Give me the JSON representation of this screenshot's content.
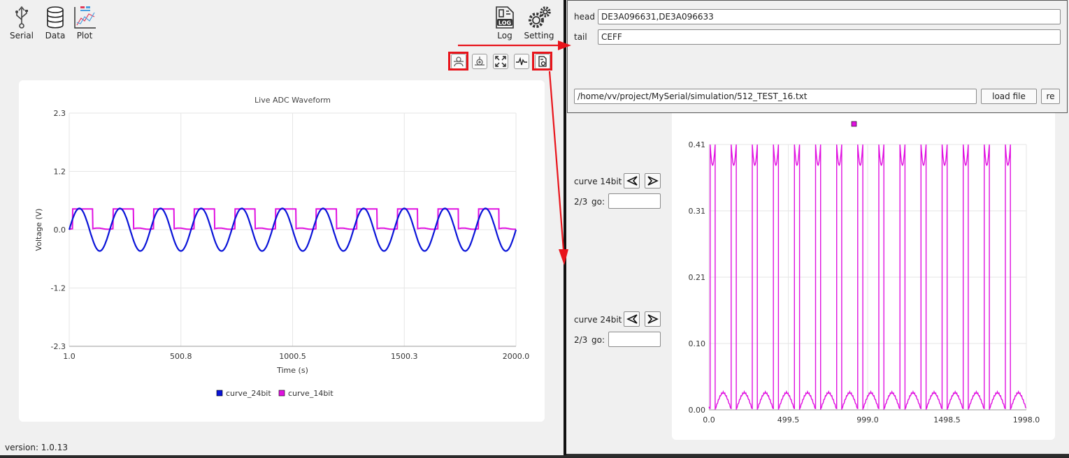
{
  "nav": {
    "serial": "Serial",
    "data": "Data",
    "plot": "Plot",
    "log": "Log",
    "setting": "Setting"
  },
  "toolbar": {
    "icons": [
      "curve-select-icon",
      "crosshair-icon",
      "fit-view-icon",
      "waveform-icon",
      "file-load-icon"
    ]
  },
  "chart_data": [
    {
      "type": "line",
      "title": "Live ADC Waveform",
      "xlabel": "Time (s)",
      "ylabel": "Voltage (V)",
      "xlim": [
        1.0,
        2000.0
      ],
      "ylim": [
        -2.3,
        2.3
      ],
      "x_ticks": [
        "1.0",
        "500.8",
        "1000.5",
        "1500.3",
        "2000.0"
      ],
      "y_ticks": [
        "2.3",
        "1.2",
        "0.0",
        "-1.2",
        "-2.3"
      ],
      "grid": true,
      "legend_position": "bottom",
      "series": [
        {
          "name": "curve_24bit",
          "color": "#0a14d8",
          "shape": "sine",
          "amplitude": 0.42,
          "offset": 0.0,
          "cycles": 11
        },
        {
          "name": "curve_14bit",
          "color": "#e011e0",
          "shape": "half-wave square",
          "high": 0.41,
          "low": 0.02,
          "cycles": 11
        }
      ]
    },
    {
      "type": "line",
      "title": "",
      "xlim": [
        0.0,
        1998.0
      ],
      "ylim": [
        0.0,
        0.41
      ],
      "x_ticks": [
        "0.0",
        "499.5",
        "999.0",
        "1498.5",
        "1998.0"
      ],
      "y_ticks": [
        "0.41",
        "0.31",
        "0.21",
        "0.10",
        "0.00"
      ],
      "grid": true,
      "legend_position": "top",
      "series": [
        {
          "color": "#e011e0",
          "shape": "rectified sine pulses",
          "high": 0.41,
          "low": 0.0,
          "cycles": 15
        }
      ]
    }
  ],
  "panel": {
    "head_label": "head",
    "head_value": "DE3A096631,DE3A096633",
    "tail_label": "tail",
    "tail_value": "CEFF",
    "file_path": "/home/vv/project/MySerial/simulation/512_TEST_16.txt",
    "load_button": "load file",
    "re_button": "re"
  },
  "controls": [
    {
      "label": "curve 14bit",
      "page": "2/3",
      "go": "go:"
    },
    {
      "label": "curve 24bit",
      "page": "2/3",
      "go": "go:"
    }
  ],
  "footer": {
    "version": "version: 1.0.13"
  },
  "colors": {
    "accent_red": "#e8141b",
    "curve_blue": "#0a14d8",
    "curve_magenta": "#e011e0"
  }
}
